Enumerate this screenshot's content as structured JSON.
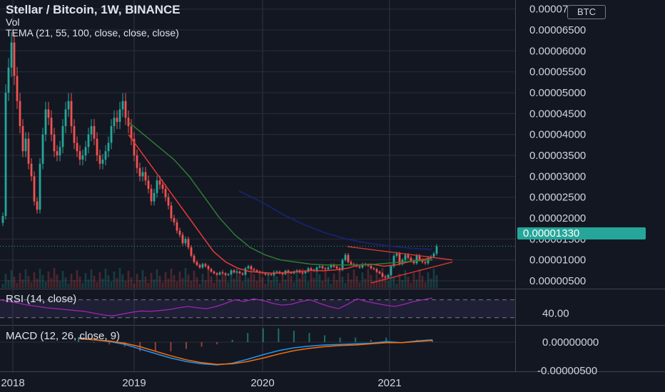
{
  "header": {
    "title": "Stellar / Bitcoin, 1W, BINANCE",
    "vol": "Vol",
    "tema": "TEMA (21, 55, 100, close, close, close)",
    "rsi": "RSI (14, close)",
    "macd": "MACD (12, 26, close, 9)"
  },
  "currency_badge": "BTC",
  "current_price_label": "0.00001330",
  "colors": {
    "background": "#131722",
    "grid": "#2a2e39",
    "up": "#26a69a",
    "down": "#ef5350",
    "tema_fast": "#e53935",
    "tema_mid": "#2e7d32",
    "tema_slow": "#1a237e",
    "rsi_line": "#9c27b0",
    "macd_line": "#2196f3",
    "signal_line": "#ff6d00",
    "triangle": "#e53935"
  },
  "chart_data": [
    {
      "type": "candlestick",
      "name": "price",
      "y_ticks": [
        "0.00007000",
        "0.00006500",
        "0.00006000",
        "0.00005500",
        "0.00005000",
        "0.00004500",
        "0.00004000",
        "0.00003500",
        "0.00003000",
        "0.00002500",
        "0.00002000",
        "0.00001500",
        "0.00001000",
        "0.00000500"
      ],
      "ylim": [
        3.3e-06,
        7.08e-05
      ],
      "current_price": 1.33e-05,
      "x_ticks": [
        "2018",
        "2019",
        "2020",
        "2021"
      ],
      "candles_start": "2017-12-25",
      "candles_interval": "1W",
      "closes": [
        2.05e-05,
        5e-05,
        5.6e-05,
        6.2e-05,
        5.4e-05,
        4.8e-05,
        4.2e-05,
        3.6e-05,
        3.9e-05,
        3.3e-05,
        3e-05,
        2.4e-05,
        2.2e-05,
        3.3e-05,
        4e-05,
        4.6e-05,
        4.4e-05,
        4e-05,
        3.6e-05,
        3.5e-05,
        3.7e-05,
        4.2e-05,
        4.6e-05,
        4.8e-05,
        4.2e-05,
        3.8e-05,
        3.6e-05,
        3.4e-05,
        3.5e-05,
        3.7e-05,
        4e-05,
        4.2e-05,
        3.9e-05,
        3.5e-05,
        3.3e-05,
        3.4e-05,
        3.6e-05,
        3.8e-05,
        4.2e-05,
        4.4e-05,
        4.3e-05,
        4.6e-05,
        4.8e-05,
        4.4e-05,
        4.2e-05,
        3.9e-05,
        3.5e-05,
        3.2e-05,
        3e-05,
        3.1e-05,
        2.9e-05,
        2.7e-05,
        2.4e-05,
        2.6e-05,
        2.9e-05,
        2.8e-05,
        2.7e-05,
        2.5e-05,
        2.3e-05,
        2e-05,
        1.9e-05,
        1.7e-05,
        1.6e-05,
        1.4e-05,
        1.5e-05,
        1.3e-05,
        1.1e-05,
        9.5e-06,
        8.8e-06,
        8.2e-06,
        9e-06,
        8.5e-06,
        7.8e-06,
        7.2e-06,
        6.8e-06,
        6.5e-06,
        7e-06,
        6.8e-06,
        6.4e-06,
        6.6e-06,
        7.5e-06,
        7e-06,
        7.2e-06,
        6.8e-06,
        6.5e-06,
        8e-06,
        8.5e-06,
        7.8e-06,
        7.5e-06,
        7.2e-06,
        7e-06,
        6.8e-06,
        6.5e-06,
        6.6e-06,
        6.4e-06,
        7e-06,
        7.2e-06,
        6.8e-06,
        6.6e-06,
        7.4e-06,
        7e-06,
        6.8e-06,
        7.2e-06,
        7.5e-06,
        7e-06,
        6.8e-06,
        7.2e-06,
        8e-06,
        7.6e-06,
        7.4e-06,
        8.2e-06,
        8.5e-06,
        8e-06,
        7.8e-06,
        8.2e-06,
        8.8e-06,
        8.4e-06,
        8e-06,
        7.6e-06,
        1e-05,
        1.12e-05,
        9.5e-06,
        9e-06,
        8.8e-06,
        8.5e-06,
        8.2e-06,
        9e-06,
        8.8e-06,
        8.6e-06,
        8e-06,
        7.8e-06,
        7.2e-06,
        6.8e-06,
        6e-06,
        5.8e-06,
        6.4e-06,
        8.5e-06,
        1.1e-05,
        1.15e-05,
        9e-06,
        1e-05,
        1.12e-05,
        1.05e-05,
        9.8e-06,
        9.2e-06,
        1.1e-05,
        1e-05,
        9.5e-06,
        9.2e-06,
        1.05e-05,
        1.08e-05,
        1.15e-05,
        1.33e-05
      ],
      "tema_21": [
        4e-05,
        3.6e-05,
        3.2e-05,
        2.8e-05,
        2.4e-05,
        2e-05,
        1.6e-05,
        1.2e-05,
        9.5e-06,
        8e-06,
        7.2e-06,
        7e-06,
        6.8e-06,
        7e-06,
        7.2e-06,
        7.5e-06,
        7.4e-06,
        7.6e-06,
        8e-06,
        8.8e-06,
        9e-06,
        8.5e-06,
        8.8e-06,
        9.5e-06,
        1e-05,
        1.05e-05
      ],
      "tema_55": [
        4.3e-05,
        4e-05,
        3.7e-05,
        3.4e-05,
        3e-05,
        2.5e-05,
        2e-05,
        1.6e-05,
        1.3e-05,
        1.12e-05,
        1e-05,
        9.5e-06,
        9e-06,
        8.8e-06,
        8.8e-06,
        8.8e-06,
        8.9e-06,
        9.2e-06,
        9.5e-06,
        9.8e-06,
        1e-05
      ],
      "tema_100": [
        2.65e-05,
        2.4e-05,
        2.1e-05,
        1.85e-05,
        1.65e-05,
        1.5e-05,
        1.4e-05,
        1.33e-05,
        1.28e-05,
        1.25e-05
      ],
      "triangle_upper": [
        [
          1.32e-05,
          1e-05
        ]
      ],
      "triangle_lower": [
        [
          4.5e-06,
          9.5e-06
        ]
      ]
    },
    {
      "type": "line",
      "name": "RSI",
      "y_ticks": [
        "40.00"
      ],
      "bands": [
        70,
        30
      ],
      "values": [
        70,
        66,
        62,
        58,
        55,
        52,
        50,
        48,
        46,
        44,
        40,
        36,
        34,
        38,
        42,
        45,
        44,
        46,
        48,
        52,
        55,
        52,
        50,
        55,
        62,
        70,
        66,
        72,
        68,
        62,
        58,
        60,
        66,
        70,
        62,
        55,
        50,
        60,
        72,
        66,
        62,
        58,
        55,
        60,
        66,
        70,
        74
      ]
    },
    {
      "type": "line",
      "name": "MACD",
      "y_ticks": [
        "0.00000000",
        "-0.00000500"
      ],
      "macd": [
        8e-07,
        4e-07,
        1e-07,
        -4e-07,
        -1.2e-06,
        -2e-06,
        -2.8e-06,
        -3.4e-06,
        -3.8e-06,
        -4e-06,
        -3.7e-06,
        -3e-06,
        -2.2e-06,
        -1.5e-06,
        -1e-06,
        -7e-07,
        -5e-07,
        -4e-07,
        -3e-07,
        -2e-07,
        1e-07,
        -1e-07,
        2e-07,
        4e-07
      ],
      "signal": [
        6e-07,
        4e-07,
        2e-07,
        -2e-07,
        -8e-07,
        -1.6e-06,
        -2.4e-06,
        -3.1e-06,
        -3.6e-06,
        -3.9e-06,
        -3.8e-06,
        -3.4e-06,
        -2.8e-06,
        -2.1e-06,
        -1.5e-06,
        -1.1e-06,
        -8e-07,
        -6e-07,
        -5e-07,
        -3e-07,
        -1e-07,
        -1e-07,
        1e-07,
        3e-07
      ]
    }
  ]
}
